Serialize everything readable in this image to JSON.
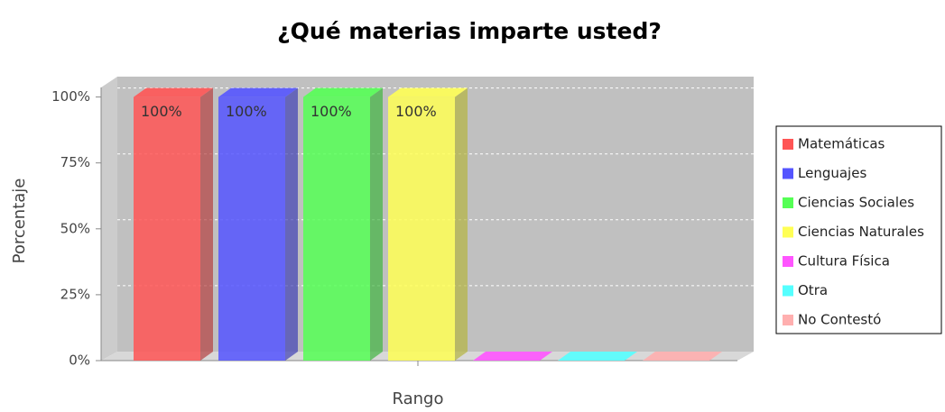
{
  "chart_data": {
    "type": "bar3d",
    "title": "¿Qué materias imparte usted?",
    "x_label": "Rango",
    "y_label": "Porcentaje",
    "categories": [
      null
    ],
    "series": [
      {
        "name": "Matemáticas",
        "color": "#ff5555",
        "values": [
          100
        ],
        "value_labels": [
          "100%"
        ]
      },
      {
        "name": "Lenguajes",
        "color": "#5555ff",
        "values": [
          100
        ],
        "value_labels": [
          "100%"
        ]
      },
      {
        "name": "Ciencias Sociales",
        "color": "#55ff55",
        "values": [
          100
        ],
        "value_labels": [
          "100%"
        ]
      },
      {
        "name": "Ciencias Naturales",
        "color": "#ffff55",
        "values": [
          100
        ],
        "value_labels": [
          "100%"
        ]
      },
      {
        "name": "Cultura Física",
        "color": "#ff55ff",
        "values": [
          0
        ],
        "value_labels": [
          null
        ]
      },
      {
        "name": "Otra",
        "color": "#55ffff",
        "values": [
          0
        ],
        "value_labels": [
          null
        ]
      },
      {
        "name": "No Contestó",
        "color": "#ffafaf",
        "values": [
          0
        ],
        "value_labels": [
          null
        ]
      }
    ],
    "ylim": [
      0,
      105
    ],
    "yticks": [
      {
        "value": 0,
        "label": "0%"
      },
      {
        "value": 25,
        "label": "25%"
      },
      {
        "value": 50,
        "label": "50%"
      },
      {
        "value": 75,
        "label": "75%"
      },
      {
        "value": 100,
        "label": "100%"
      }
    ],
    "grid": true,
    "legend": "right"
  }
}
